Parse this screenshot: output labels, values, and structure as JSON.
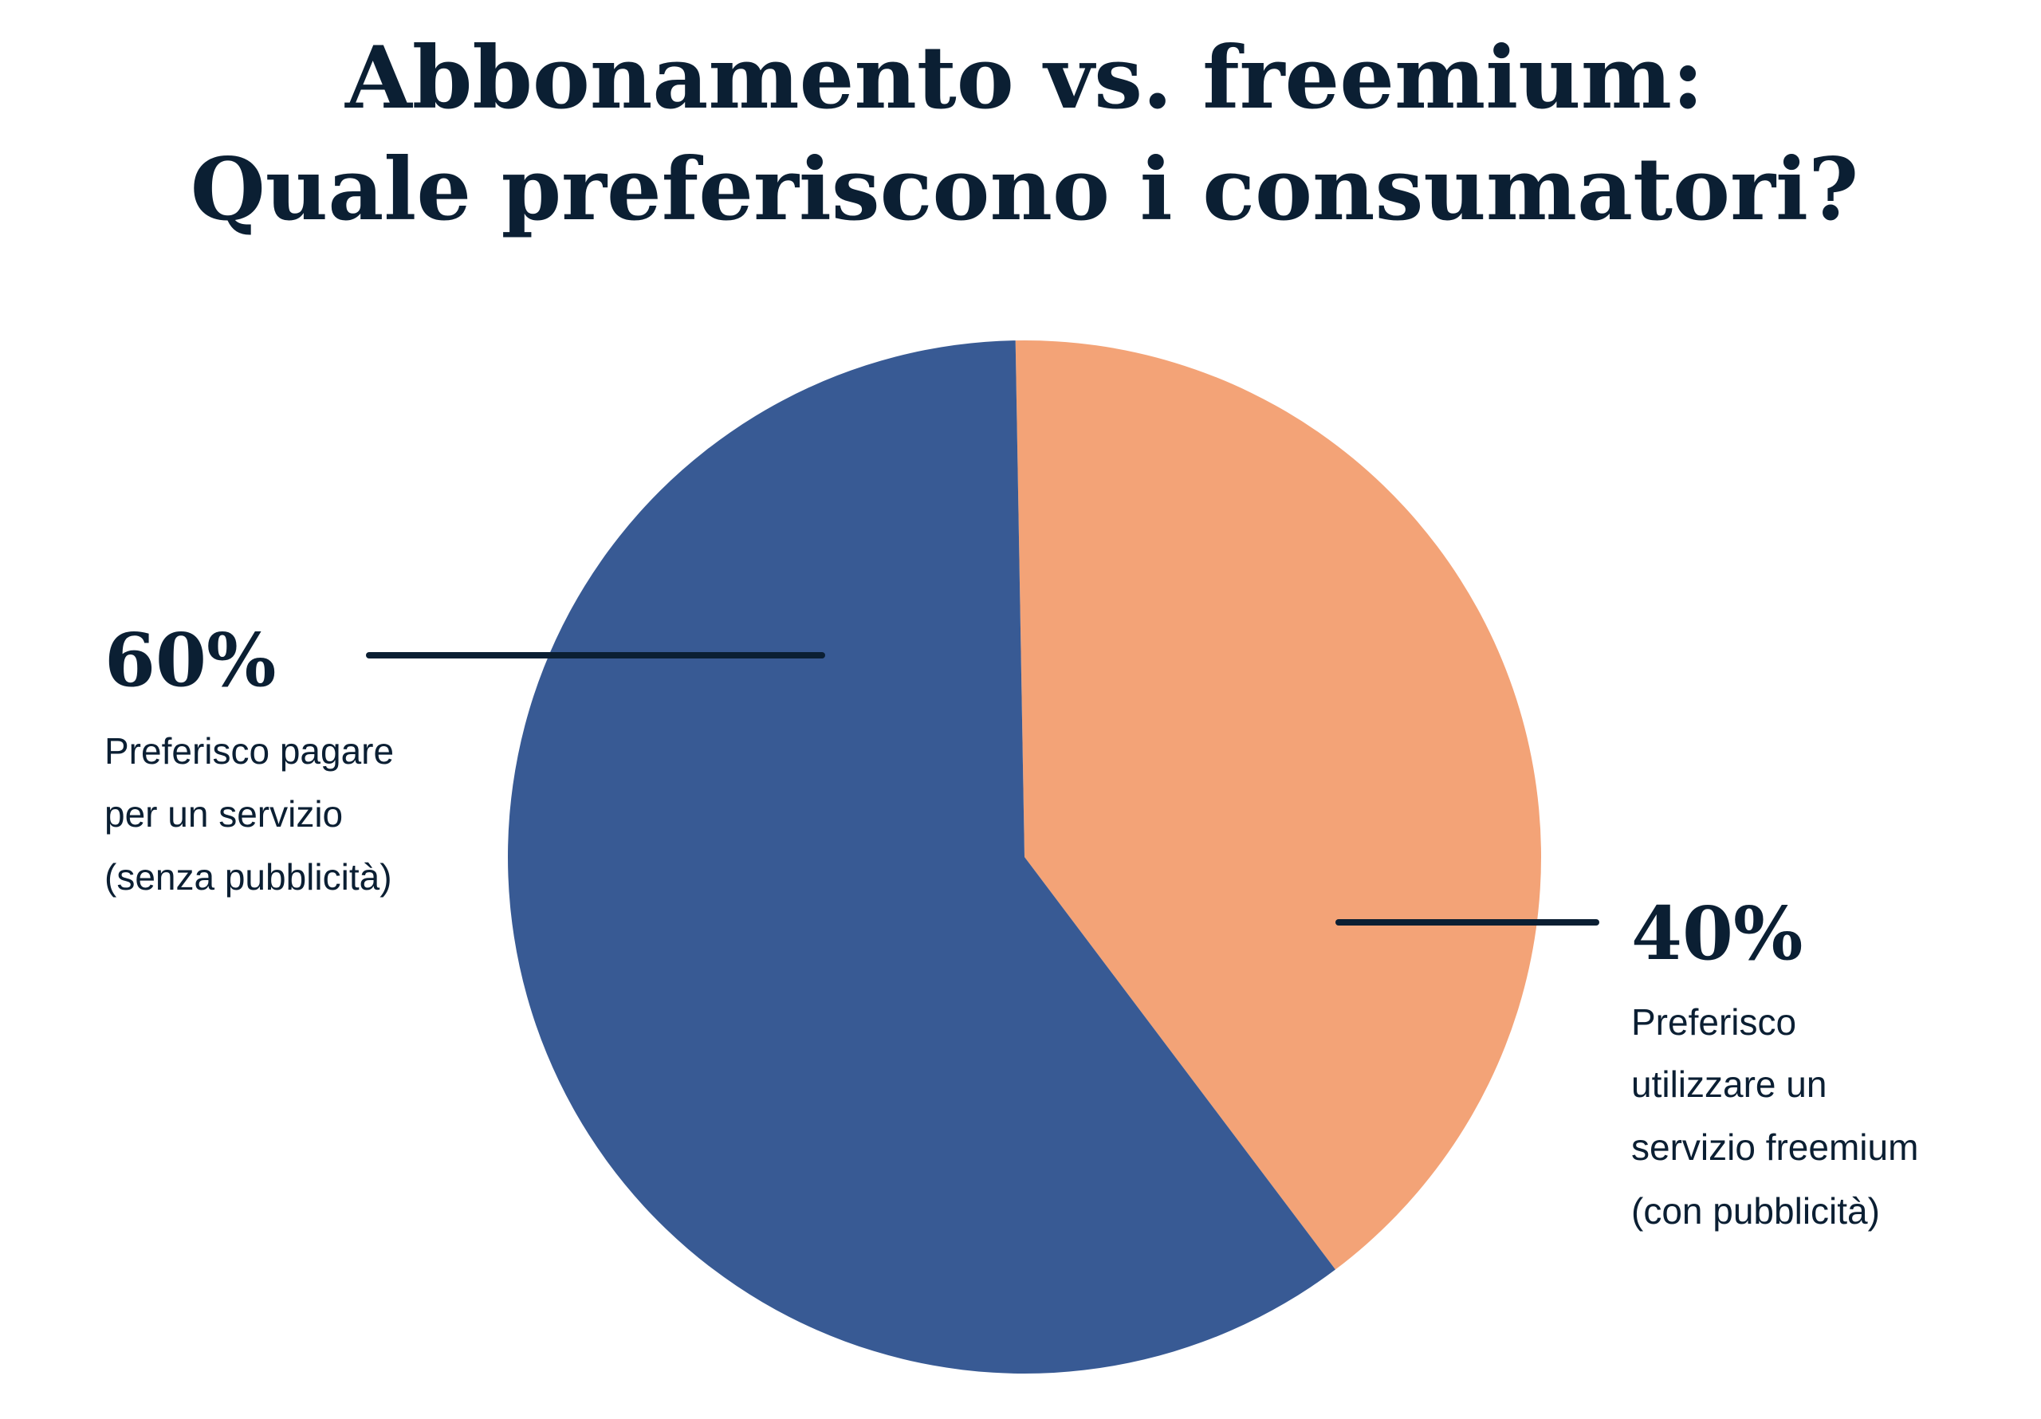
{
  "chart_data": {
    "type": "pie",
    "title": [
      "Abbonamento vs. freemium:",
      "Quale preferiscono i consumatori?"
    ],
    "slices": [
      {
        "label": "40%",
        "value": 40,
        "description": [
          "Preferisco",
          "utilizzare un",
          "servizio freemium",
          "(con pubblicità)"
        ],
        "color": "#f3a377"
      },
      {
        "label": "60%",
        "value": 60,
        "description": [
          "Preferisco pagare",
          "per un servizio",
          "(senza pubblicità)"
        ],
        "color": "#385a94"
      }
    ],
    "text_color": "#0b1f33",
    "legend": "none"
  }
}
